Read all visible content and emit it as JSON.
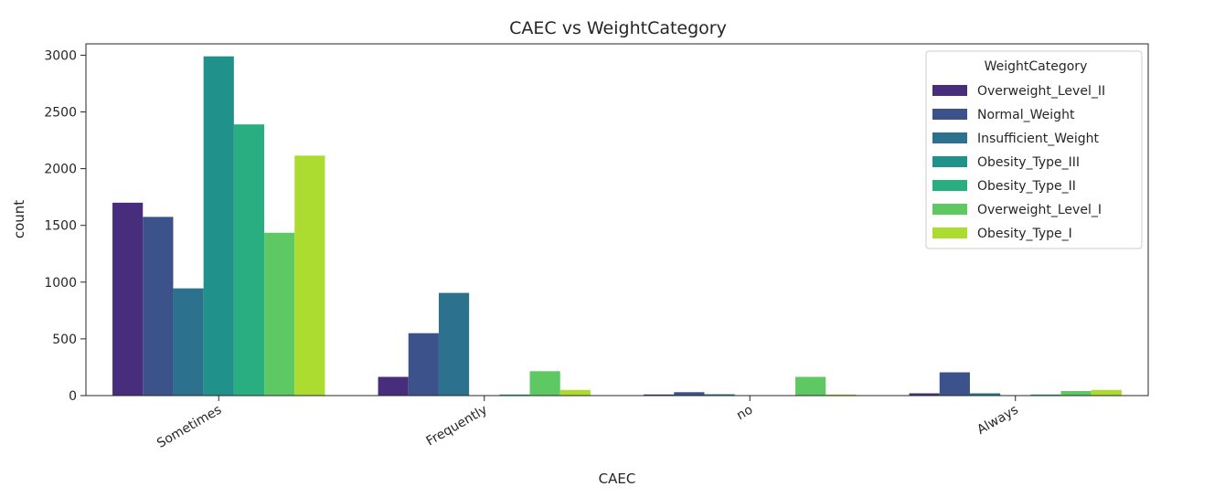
{
  "chart_data": {
    "type": "bar",
    "title": "CAEC vs WeightCategory",
    "xlabel": "CAEC",
    "ylabel": "count",
    "ylim": [
      0,
      3100
    ],
    "yticks": [
      0,
      500,
      1000,
      1500,
      2000,
      2500,
      3000
    ],
    "categories": [
      "Sometimes",
      "Frequently",
      "no",
      "Always"
    ],
    "legend": {
      "title": "WeightCategory",
      "placement": "upper right"
    },
    "grid": false,
    "series": [
      {
        "name": "Overweight_Level_II",
        "color": "#472d7b",
        "values": [
          1700,
          165,
          10,
          20
        ]
      },
      {
        "name": "Normal_Weight",
        "color": "#3b528b",
        "values": [
          1575,
          550,
          30,
          205
        ]
      },
      {
        "name": "Insufficient_Weight",
        "color": "#2c728e",
        "values": [
          945,
          905,
          12,
          20
        ]
      },
      {
        "name": "Obesity_Type_III",
        "color": "#21918c",
        "values": [
          2990,
          0,
          0,
          0
        ]
      },
      {
        "name": "Obesity_Type_II",
        "color": "#28ae80",
        "values": [
          2390,
          10,
          2,
          10
        ]
      },
      {
        "name": "Overweight_Level_I",
        "color": "#5ec962",
        "values": [
          1435,
          215,
          165,
          40
        ]
      },
      {
        "name": "Obesity_Type_I",
        "color": "#addc30",
        "values": [
          2115,
          50,
          10,
          50
        ]
      }
    ]
  }
}
